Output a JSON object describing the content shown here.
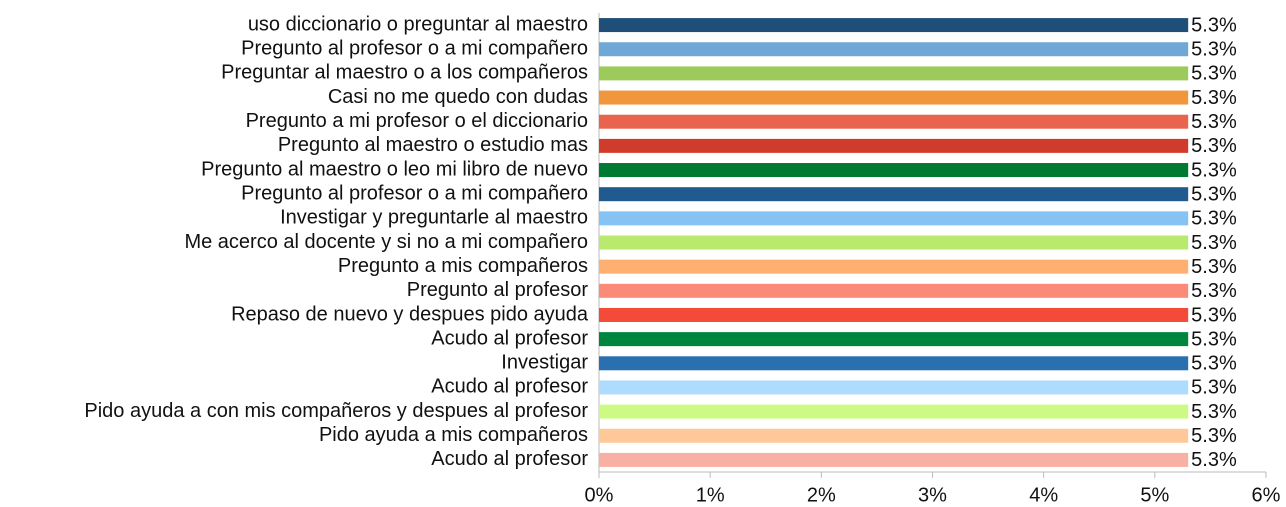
{
  "chart_data": {
    "type": "hbar",
    "categories": [
      "uso diccionario o preguntar al maestro",
      "Pregunto al profesor o a mi compañero",
      "Preguntar al maestro o a los compañeros",
      "Casi no me quedo con dudas",
      "Pregunto a mi profesor o el diccionario",
      "Pregunto al maestro o estudio mas",
      "Pregunto al maestro o leo mi libro de nuevo",
      "Pregunto al profesor o a mi compañero",
      "Investigar y preguntarle al maestro",
      "Me acerco al docente y si no a mi compañero",
      "Pregunto a mis compañeros",
      "Pregunto al profesor",
      "Repaso de nuevo y despues pido ayuda",
      "Acudo al profesor",
      "Investigar",
      "Acudo al profesor",
      "Pido ayuda a con mis compañeros y despues al profesor",
      "Pido ayuda a mis compañeros",
      "Acudo al profesor"
    ],
    "values": [
      5.3,
      5.3,
      5.3,
      5.3,
      5.3,
      5.3,
      5.3,
      5.3,
      5.3,
      5.3,
      5.3,
      5.3,
      5.3,
      5.3,
      5.3,
      5.3,
      5.3,
      5.3,
      5.3
    ],
    "value_labels": [
      "5.3%",
      "5.3%",
      "5.3%",
      "5.3%",
      "5.3%",
      "5.3%",
      "5.3%",
      "5.3%",
      "5.3%",
      "5.3%",
      "5.3%",
      "5.3%",
      "5.3%",
      "5.3%",
      "5.3%",
      "5.3%",
      "5.3%",
      "5.3%",
      "5.3%"
    ],
    "colors": [
      "#1f4e79",
      "#6fa8d6",
      "#9ccb5b",
      "#f0963c",
      "#e8644f",
      "#d03c2c",
      "#007a33",
      "#215a91",
      "#85c3f5",
      "#b9ea6e",
      "#ffb070",
      "#fc8a78",
      "#f44a3a",
      "#00853e",
      "#2a70b0",
      "#aedcff",
      "#ccfa85",
      "#ffc898",
      "#f9b0a4"
    ],
    "xlim": [
      0,
      6
    ],
    "xticks": [
      {
        "value": 0,
        "label": "0%"
      },
      {
        "value": 1,
        "label": "1%"
      },
      {
        "value": 2,
        "label": "2%"
      },
      {
        "value": 3,
        "label": "3%"
      },
      {
        "value": 4,
        "label": "4%"
      },
      {
        "value": 5,
        "label": "5%"
      },
      {
        "value": 6,
        "label": "6%"
      }
    ],
    "grid": false
  }
}
